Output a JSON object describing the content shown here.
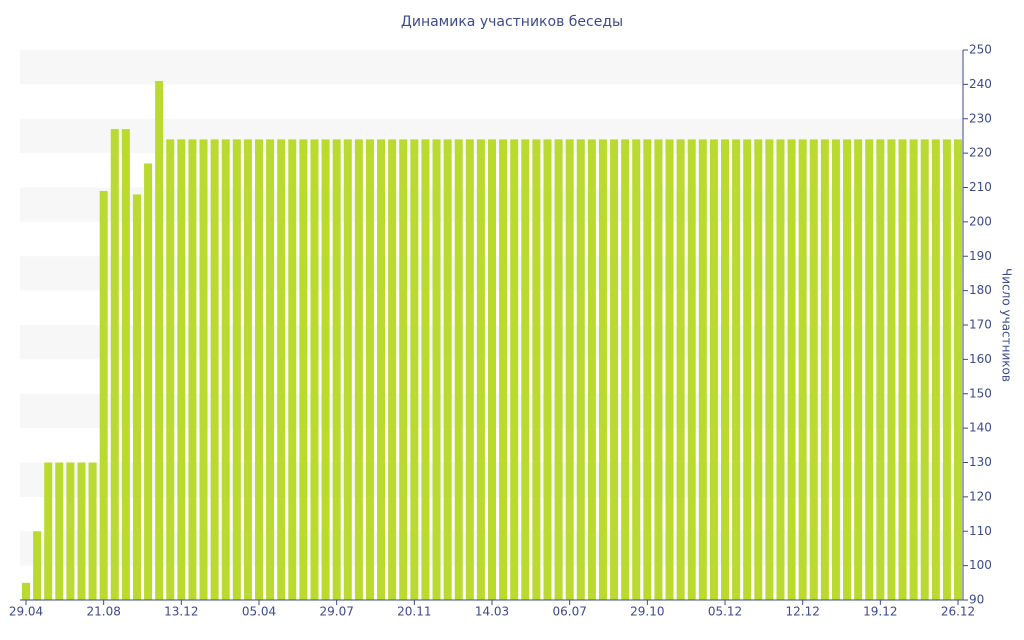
{
  "chart_data": {
    "type": "bar",
    "title": "Динамика участников беседы",
    "y_axis_label": "Число участников",
    "categories": [
      "29.04",
      null,
      null,
      null,
      null,
      null,
      null,
      "21.08",
      null,
      null,
      null,
      null,
      null,
      null,
      "13.12",
      null,
      null,
      null,
      null,
      null,
      null,
      "05.04",
      null,
      null,
      null,
      null,
      null,
      null,
      "29.07",
      null,
      null,
      null,
      null,
      null,
      null,
      "20.11",
      null,
      null,
      null,
      null,
      null,
      null,
      "14.03",
      null,
      null,
      null,
      null,
      null,
      null,
      "06.07",
      null,
      null,
      null,
      null,
      null,
      null,
      "29.10",
      null,
      null,
      null,
      null,
      null,
      null,
      "05.12",
      null,
      null,
      null,
      null,
      null,
      null,
      "12.12",
      null,
      null,
      null,
      null,
      null,
      null,
      "19.12",
      null,
      null,
      null,
      null,
      null,
      null,
      "26.12"
    ],
    "values": [
      95,
      110,
      130,
      130,
      130,
      130,
      130,
      209,
      227,
      227,
      208,
      217,
      241,
      224,
      224,
      224,
      224,
      224,
      224,
      224,
      224,
      224,
      224,
      224,
      224,
      224,
      224,
      224,
      224,
      224,
      224,
      224,
      224,
      224,
      224,
      224,
      224,
      224,
      224,
      224,
      224,
      224,
      224,
      224,
      224,
      224,
      224,
      224,
      224,
      224,
      224,
      224,
      224,
      224,
      224,
      224,
      224,
      224,
      224,
      224,
      224,
      224,
      224,
      224,
      224,
      224,
      224,
      224,
      224,
      224,
      224,
      224,
      224,
      224,
      224,
      224,
      224,
      224,
      224,
      224,
      224,
      224,
      224,
      224,
      224
    ],
    "color": "#bada2f",
    "ylim": [
      90,
      250
    ],
    "yticks": [
      90,
      100,
      110,
      120,
      130,
      140,
      150,
      160,
      170,
      180,
      190,
      200,
      210,
      220,
      230,
      240,
      250
    ],
    "grid": true,
    "y_axis_side": "right"
  }
}
